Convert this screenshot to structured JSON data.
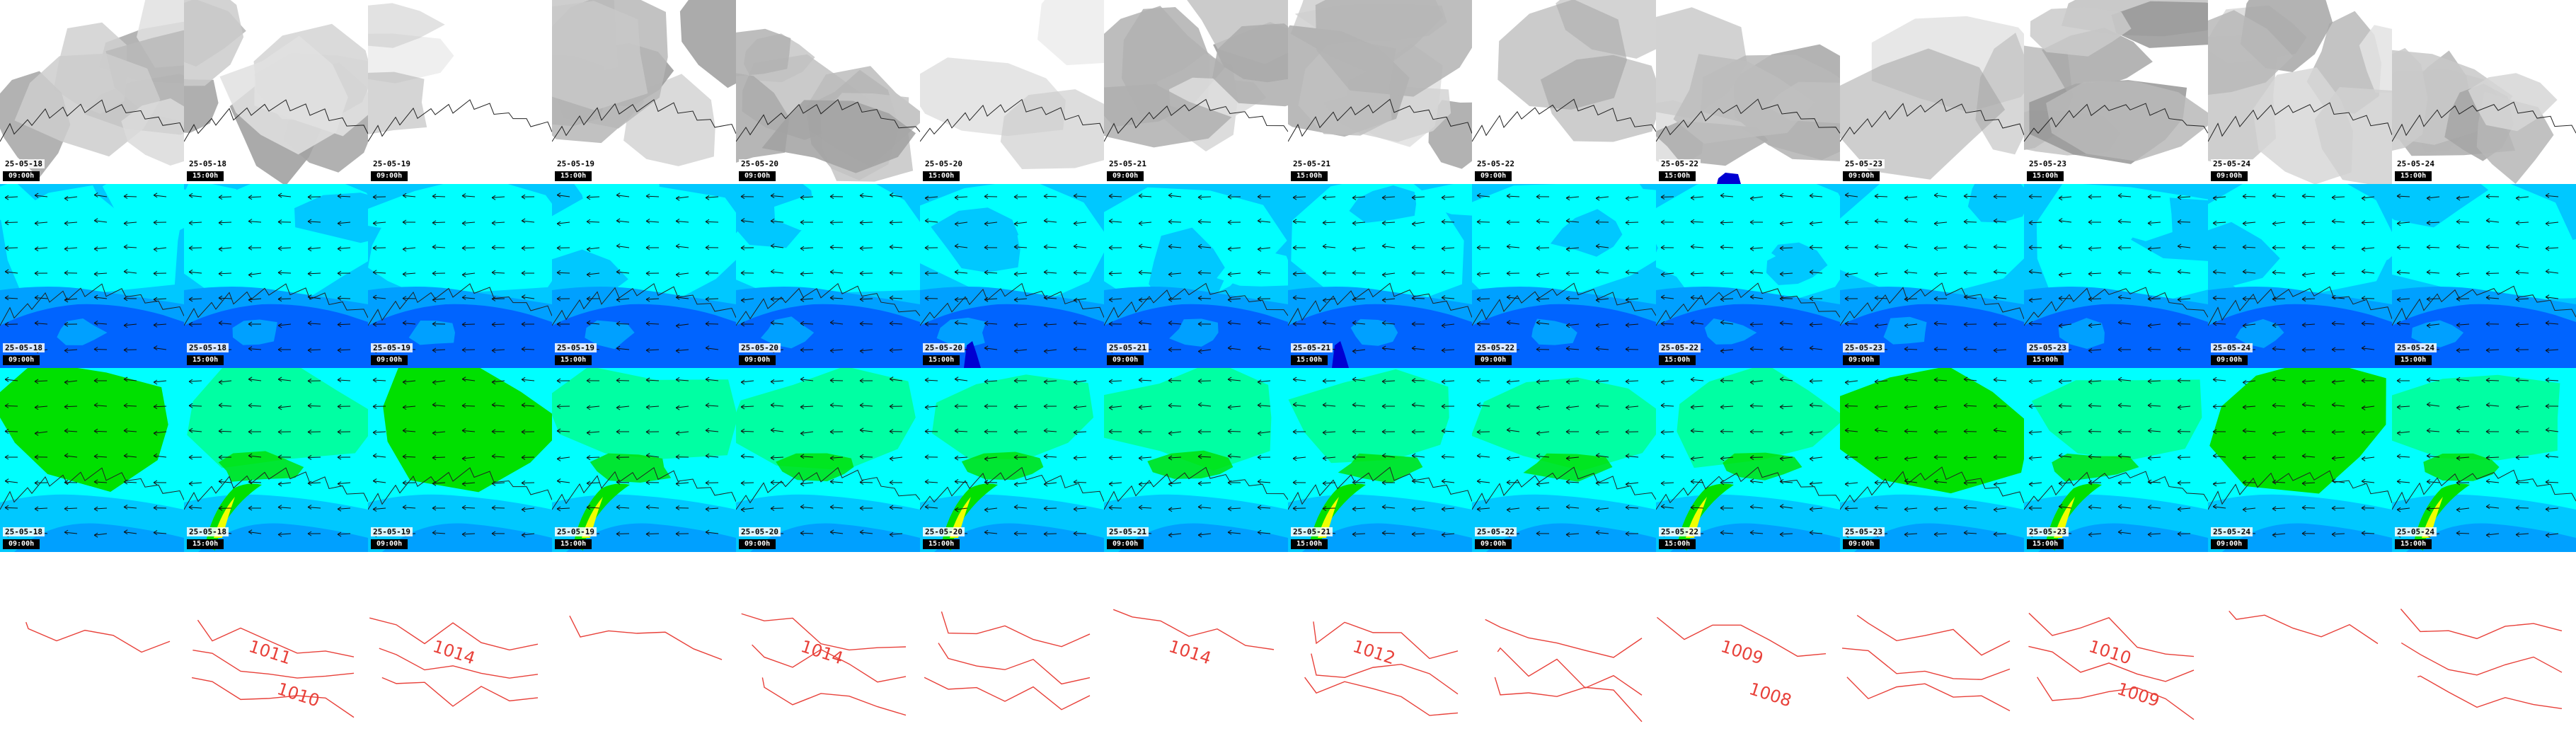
{
  "grid": {
    "rows": 4,
    "cols": 14
  },
  "colors": {
    "coastline": "#222222",
    "wind_arrow": "#111111",
    "isobar": "#e8413a",
    "cloud_gray": "#9a9a9a",
    "cyan": "#00ffff",
    "sky": "#00c8ff",
    "light_blue": "#00a0ff",
    "blue": "#0064ff",
    "deep_blue": "#0000d2",
    "sea_green": "#00ff99",
    "green": "#00e000",
    "yellow": "#f0ff00"
  },
  "timestamps": [
    {
      "date": "25-05-18",
      "hour": "09:00h"
    },
    {
      "date": "25-05-18",
      "hour": "15:00h"
    },
    {
      "date": "25-05-19",
      "hour": "09:00h"
    },
    {
      "date": "25-05-19",
      "hour": "15:00h"
    },
    {
      "date": "25-05-20",
      "hour": "09:00h"
    },
    {
      "date": "25-05-20",
      "hour": "15:00h"
    },
    {
      "date": "25-05-21",
      "hour": "09:00h"
    },
    {
      "date": "25-05-21",
      "hour": "15:00h"
    },
    {
      "date": "25-05-22",
      "hour": "09:00h"
    },
    {
      "date": "25-05-22",
      "hour": "15:00h"
    },
    {
      "date": "25-05-23",
      "hour": "09:00h"
    },
    {
      "date": "25-05-23",
      "hour": "15:00h"
    },
    {
      "date": "25-05-24",
      "hour": "09:00h"
    },
    {
      "date": "25-05-24",
      "hour": "15:00h"
    }
  ],
  "rows": [
    {
      "layer": "cloud-cover"
    },
    {
      "layer": "wind-speed"
    },
    {
      "layer": "gust-speed"
    },
    {
      "layer": "pressure-isobars"
    }
  ],
  "isobar_labels": [
    {
      "col": 1,
      "text": "1011"
    },
    {
      "col": 1,
      "text": "1010"
    },
    {
      "col": 2,
      "text": "1014"
    },
    {
      "col": 4,
      "text": "1014"
    },
    {
      "col": 6,
      "text": "1014"
    },
    {
      "col": 7,
      "text": "1012"
    },
    {
      "col": 9,
      "text": "1009"
    },
    {
      "col": 9,
      "text": "1008"
    },
    {
      "col": 11,
      "text": "1010"
    },
    {
      "col": 11,
      "text": "1009"
    }
  ]
}
